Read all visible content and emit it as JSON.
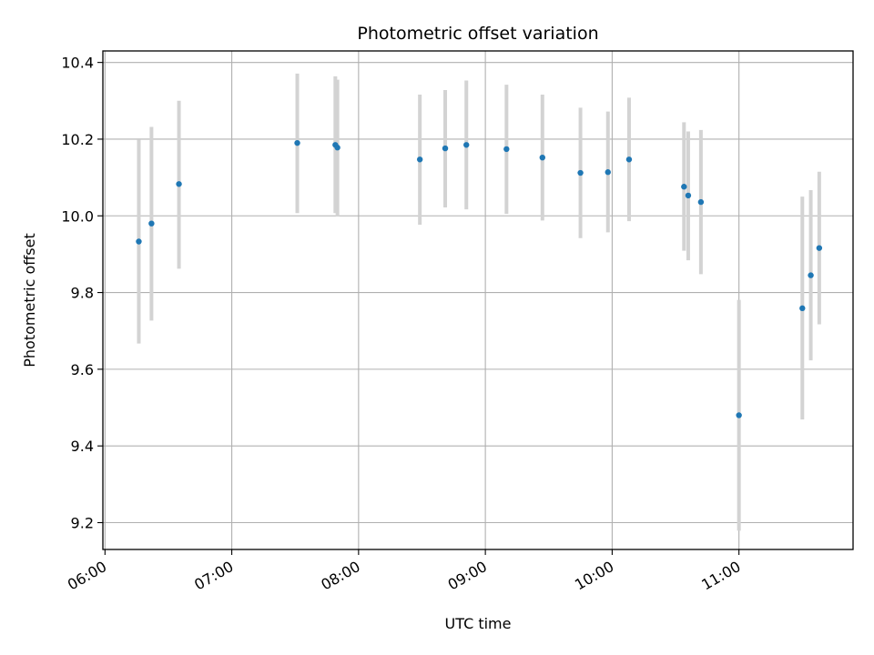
{
  "chart_data": {
    "type": "scatter",
    "title": "Photometric offset variation",
    "xlabel": "UTC time",
    "ylabel": "Photometric offset",
    "x_unit": "UTC time (HH:MM)",
    "xlim": [
      "05:59",
      "11:54"
    ],
    "ylim": [
      9.13,
      10.43
    ],
    "xticks": [
      "06:00",
      "07:00",
      "08:00",
      "09:00",
      "10:00",
      "11:00"
    ],
    "yticks": [
      9.2,
      9.4,
      9.6,
      9.8,
      10.0,
      10.2,
      10.4
    ],
    "ytick_labels": [
      "9.2",
      "9.4",
      "9.6",
      "9.8",
      "10.0",
      "10.2",
      "10.4"
    ],
    "grid": true,
    "legend": "none",
    "colors": {
      "marker": "#1f77b4",
      "errorbar": "#d3d3d3",
      "grid": "#b0b0b0"
    },
    "series": [
      {
        "points": [
          {
            "x": "06:16",
            "y": 9.933,
            "lo": 9.667,
            "hi": 10.198
          },
          {
            "x": "06:22",
            "y": 9.98,
            "lo": 9.727,
            "hi": 10.232
          },
          {
            "x": "06:35",
            "y": 10.083,
            "lo": 9.862,
            "hi": 10.3
          },
          {
            "x": "07:31",
            "y": 10.19,
            "lo": 10.007,
            "hi": 10.371
          },
          {
            "x": "07:49",
            "y": 10.185,
            "lo": 10.007,
            "hi": 10.364
          },
          {
            "x": "07:50",
            "y": 10.178,
            "lo": 9.998,
            "hi": 10.355
          },
          {
            "x": "08:29",
            "y": 10.147,
            "lo": 9.977,
            "hi": 10.316
          },
          {
            "x": "08:41",
            "y": 10.176,
            "lo": 10.022,
            "hi": 10.328
          },
          {
            "x": "08:51",
            "y": 10.185,
            "lo": 10.017,
            "hi": 10.353
          },
          {
            "x": "09:10",
            "y": 10.174,
            "lo": 10.005,
            "hi": 10.342
          },
          {
            "x": "09:27",
            "y": 10.152,
            "lo": 9.988,
            "hi": 10.316
          },
          {
            "x": "09:45",
            "y": 10.112,
            "lo": 9.942,
            "hi": 10.282
          },
          {
            "x": "09:58",
            "y": 10.114,
            "lo": 9.957,
            "hi": 10.272
          },
          {
            "x": "10:08",
            "y": 10.147,
            "lo": 9.986,
            "hi": 10.308
          },
          {
            "x": "10:34",
            "y": 10.076,
            "lo": 9.909,
            "hi": 10.244
          },
          {
            "x": "10:36",
            "y": 10.053,
            "lo": 9.884,
            "hi": 10.22
          },
          {
            "x": "10:42",
            "y": 10.036,
            "lo": 9.848,
            "hi": 10.224
          },
          {
            "x": "11:00",
            "y": 9.48,
            "lo": 9.179,
            "hi": 9.781
          },
          {
            "x": "11:30",
            "y": 9.759,
            "lo": 9.469,
            "hi": 10.05
          },
          {
            "x": "11:34",
            "y": 9.845,
            "lo": 9.623,
            "hi": 10.067
          },
          {
            "x": "11:38",
            "y": 9.916,
            "lo": 9.717,
            "hi": 10.115
          }
        ]
      }
    ]
  }
}
